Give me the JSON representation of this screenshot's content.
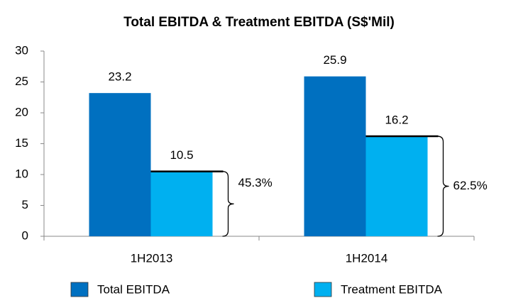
{
  "chart_data": {
    "type": "bar",
    "title": "Total EBITDA & Treatment EBITDA (S$'Mil)",
    "categories": [
      "1H2013",
      "1H2014"
    ],
    "series": [
      {
        "name": "Total EBITDA",
        "color": "#0070c0",
        "values": [
          23.2,
          25.9
        ]
      },
      {
        "name": "Treatment EBITDA",
        "color": "#00b0f0",
        "values": [
          10.5,
          16.2
        ]
      }
    ],
    "annotations": [
      "45.3%",
      "62.5%"
    ],
    "ylim": [
      0,
      30
    ],
    "yticks": [
      0,
      5,
      10,
      15,
      20,
      25,
      30
    ],
    "grid": false,
    "legend": "bottom"
  }
}
